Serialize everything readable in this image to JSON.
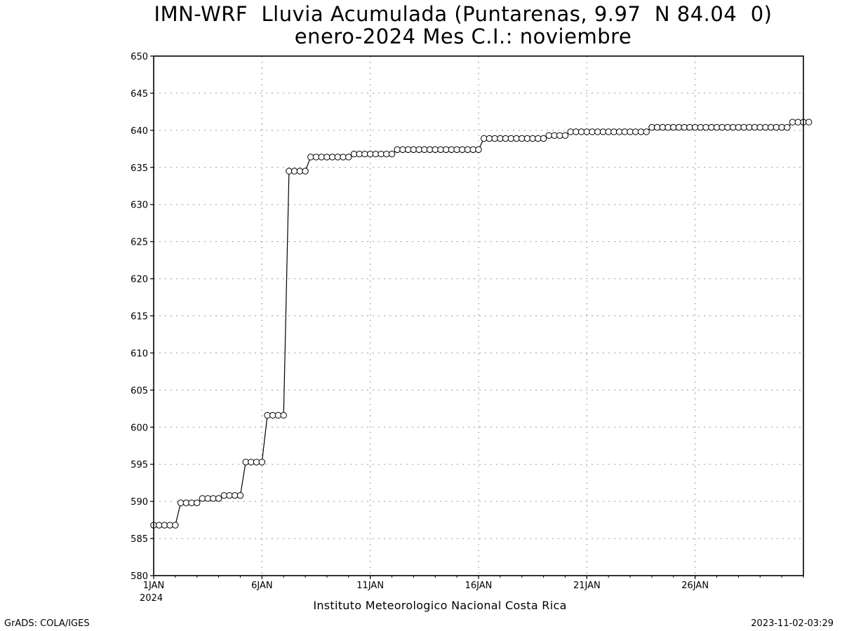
{
  "title_line1": "IMN-WRF  Lluvia Acumulada (Puntarenas, 9.97  N 84.04  0)",
  "title_line2": "enero-2024 Mes C.I.: noviembre",
  "footer_left": "GrADS: COLA/IGES",
  "footer_right": "2023-11-02-03:29",
  "chart_data": {
    "type": "line",
    "title": "IMN-WRF  Lluvia Acumulada (Puntarenas, 9.97  N 84.04  0)",
    "subtitle": "enero-2024 Mes C.I.: noviembre",
    "xlabel": "Instituto Meteorologico Nacional Costa Rica",
    "ylabel": "",
    "x_year_label": "2024",
    "xlim_days": [
      1,
      31
    ],
    "ylim": [
      580,
      650
    ],
    "yticks": [
      580,
      585,
      590,
      595,
      600,
      605,
      610,
      615,
      620,
      625,
      630,
      635,
      640,
      645,
      650
    ],
    "xticks": [
      {
        "day": 1,
        "label": "1JAN"
      },
      {
        "day": 6,
        "label": "6JAN"
      },
      {
        "day": 11,
        "label": "11JAN"
      },
      {
        "day": 16,
        "label": "16JAN"
      },
      {
        "day": 21,
        "label": "21JAN"
      },
      {
        "day": 26,
        "label": "26JAN"
      }
    ],
    "grid": true,
    "marker": "open-circle",
    "line_color": "#000000",
    "step_hours": 6,
    "series": [
      {
        "values": [
          586.8,
          586.8,
          586.8,
          586.8,
          586.8,
          589.8,
          589.8,
          589.8,
          589.8,
          590.4,
          590.4,
          590.4,
          590.4,
          590.8,
          590.8,
          590.8,
          590.8,
          595.3,
          595.3,
          595.3,
          595.3,
          601.6,
          601.6,
          601.6,
          601.6,
          634.5,
          634.5,
          634.5,
          634.5,
          636.4,
          636.4,
          636.4,
          636.4,
          636.4,
          636.4,
          636.4,
          636.4,
          636.8,
          636.8,
          636.8,
          636.8,
          636.8,
          636.8,
          636.8,
          636.8,
          637.4,
          637.4,
          637.4,
          637.4,
          637.4,
          637.4,
          637.4,
          637.4,
          637.4,
          637.4,
          637.4,
          637.4,
          637.4,
          637.4,
          637.4,
          637.4,
          638.9,
          638.9,
          638.9,
          638.9,
          638.9,
          638.9,
          638.9,
          638.9,
          638.9,
          638.9,
          638.9,
          638.9,
          639.3,
          639.3,
          639.3,
          639.3,
          639.8,
          639.8,
          639.8,
          639.8,
          639.8,
          639.8,
          639.8,
          639.8,
          639.8,
          639.8,
          639.8,
          639.8,
          639.8,
          639.8,
          639.8,
          640.4,
          640.4,
          640.4,
          640.4,
          640.4,
          640.4,
          640.4,
          640.4,
          640.4,
          640.4,
          640.4,
          640.4,
          640.4,
          640.4,
          640.4,
          640.4,
          640.4,
          640.4,
          640.4,
          640.4,
          640.4,
          640.4,
          640.4,
          640.4,
          640.4,
          640.4,
          641.1,
          641.1,
          641.1,
          641.1
        ]
      }
    ]
  }
}
